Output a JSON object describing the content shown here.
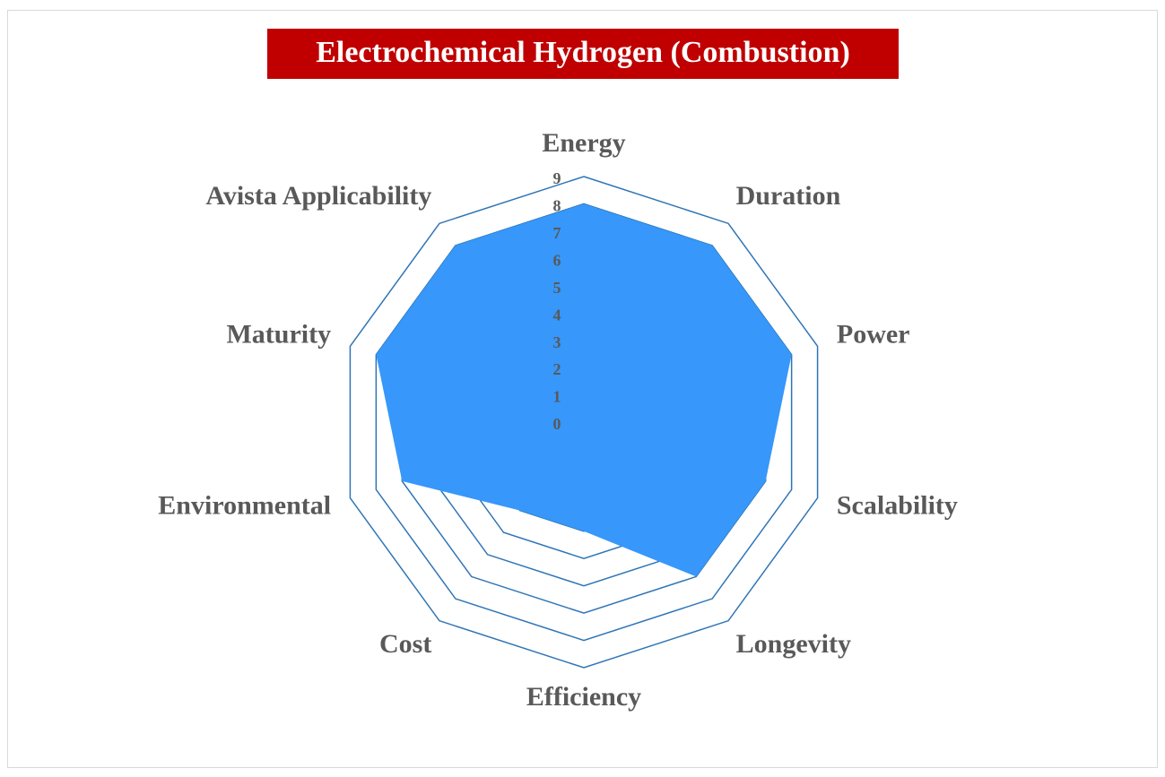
{
  "chart_data": {
    "type": "radar",
    "title": "Electrochemical Hydrogen (Combustion)",
    "categories": [
      "Energy",
      "Duration",
      "Power",
      "Scalability",
      "Longevity",
      "Efficiency",
      "Cost",
      "Environmental",
      "Maturity",
      "Avista Applicability"
    ],
    "values": [
      8,
      8,
      8,
      7,
      7,
      4,
      4,
      7,
      8,
      8
    ],
    "color": "#3797fa",
    "grid_color": "#2e75b6",
    "title_background": "#c00000",
    "rlim": [
      0,
      9
    ],
    "rticks": [
      0,
      1,
      2,
      3,
      4,
      5,
      6,
      7,
      8,
      9
    ],
    "grid": true
  }
}
